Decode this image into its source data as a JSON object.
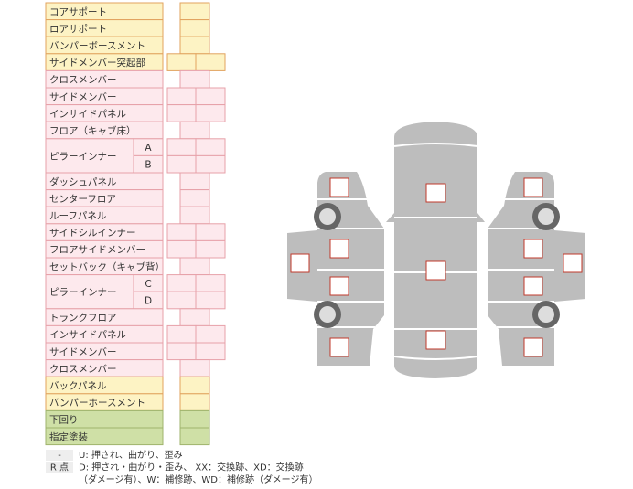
{
  "table": {
    "rows": [
      {
        "label": "コアサポート"
      },
      {
        "label": "ロアサポート"
      },
      {
        "label": "バンパーボースメント"
      },
      {
        "label": "サイドメンバー突起部"
      },
      {
        "label": "クロスメンバー"
      },
      {
        "label": "サイドメンバー"
      },
      {
        "label": "インサイドパネル"
      },
      {
        "label": "フロア（キャブ床）"
      },
      {
        "label": "ピラーインナー",
        "sub": [
          "A",
          "B"
        ]
      },
      {
        "label": "ダッシュパネル"
      },
      {
        "label": "センターフロア"
      },
      {
        "label": "ルーフパネル"
      },
      {
        "label": "サイドシルインナー"
      },
      {
        "label": "フロアサイドメンバー"
      },
      {
        "label": "セットバック（キャブ背）"
      },
      {
        "label": "ピラーインナー",
        "sub": [
          "C",
          "D"
        ]
      },
      {
        "label": "トランクフロア"
      },
      {
        "label": "インサイドパネル"
      },
      {
        "label": "サイドメンバー"
      },
      {
        "label": "クロスメンバー"
      },
      {
        "label": "バックパネル"
      },
      {
        "label": "バンパーホースメント"
      },
      {
        "label": "下回り"
      },
      {
        "label": "指定塗装"
      }
    ]
  },
  "legend": [
    {
      "key": "-",
      "lines": [
        "U: 押され、曲がり、歪み"
      ]
    },
    {
      "key": "R 点",
      "lines": [
        "D: 押され・曲がり・歪み、 XX：交換跡、XD：交換跡",
        "（ダメージ有）、W：補修跡、WD：補修跡（ダメージ有）"
      ]
    }
  ]
}
